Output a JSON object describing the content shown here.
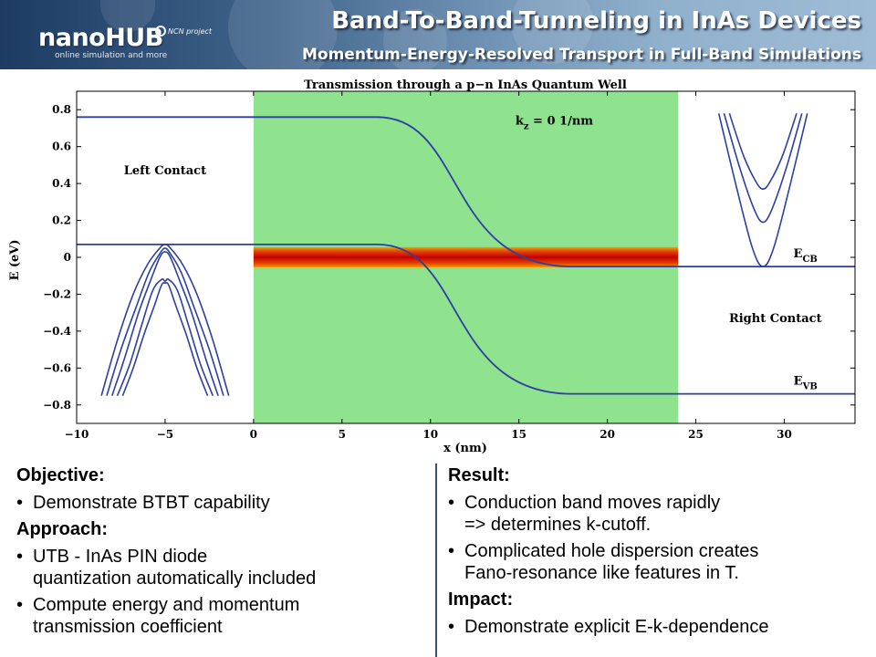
{
  "header": {
    "title": "Band-To-Band-Tunneling in InAs Devices",
    "subtitle": "Momentum-Energy-Resolved Transport in Full-Band Simulations",
    "logo_text": "nanoHUB",
    "logo_tagline": "online simulation and more",
    "partner_text": "NCN project"
  },
  "chart_data": {
    "type": "line",
    "title": "Transmission through a p−n InAs Quantum Well",
    "xlabel": "x (nm)",
    "ylabel": "E (eV)",
    "xlim": [
      -10,
      34
    ],
    "ylim": [
      -0.9,
      0.9
    ],
    "x_ticks": [
      -10,
      -5,
      0,
      5,
      10,
      15,
      20,
      25,
      30
    ],
    "x_tick_labels": [
      "−10",
      "−5",
      "0",
      "5",
      "10",
      "15",
      "20",
      "25",
      "30"
    ],
    "y_ticks": [
      -0.8,
      -0.6,
      -0.4,
      -0.2,
      0,
      0.2,
      0.4,
      0.6,
      0.8
    ],
    "y_tick_labels": [
      "−0.8",
      "−0.6",
      "−0.4",
      "−0.2",
      "0",
      "0.2",
      "0.4",
      "0.6",
      "0.8"
    ],
    "grid": false,
    "device_region": [
      0,
      24
    ],
    "transmission_band": [
      -0.055,
      0.055
    ],
    "series": [
      {
        "name": "E_CB",
        "x": [
          -10,
          7,
          12.5,
          18,
          34
        ],
        "y": [
          0.76,
          0.76,
          0.35,
          -0.05,
          -0.05
        ]
      },
      {
        "name": "E_VB",
        "x": [
          -10,
          7,
          12.5,
          18,
          34
        ],
        "y": [
          0.07,
          0.07,
          -0.33,
          -0.74,
          -0.74
        ]
      }
    ],
    "left_contact_dispersion": [
      {
        "x": [
          -8.6,
          -7.7,
          -6.8,
          -6.0,
          -5.3,
          -5.0,
          -4.7,
          -4.0,
          -3.2,
          -2.3,
          -1.4
        ],
        "y": [
          -0.75,
          -0.45,
          -0.2,
          -0.04,
          0.05,
          0.07,
          0.05,
          -0.04,
          -0.2,
          -0.45,
          -0.75
        ]
      },
      {
        "x": [
          -8.3,
          -7.5,
          -6.6,
          -5.9,
          -5.3,
          -5.0,
          -4.7,
          -4.1,
          -3.4,
          -2.5,
          -1.7
        ],
        "y": [
          -0.75,
          -0.5,
          -0.26,
          -0.08,
          0.02,
          0.05,
          0.02,
          -0.08,
          -0.26,
          -0.5,
          -0.75
        ]
      },
      {
        "x": [
          -8.0,
          -7.3,
          -6.5,
          -5.8,
          -5.3,
          -5.0,
          -4.7,
          -4.2,
          -3.5,
          -2.7,
          -2.0
        ],
        "y": [
          -0.75,
          -0.55,
          -0.3,
          -0.12,
          0.0,
          0.03,
          0.0,
          -0.12,
          -0.3,
          -0.55,
          -0.75
        ]
      },
      {
        "x": [
          -7.7,
          -7.0,
          -6.3,
          -5.7,
          -5.2,
          -5.0,
          -4.8,
          -4.3,
          -3.7,
          -3.0,
          -2.3
        ],
        "y": [
          -0.75,
          -0.58,
          -0.36,
          -0.18,
          -0.12,
          -0.13,
          -0.12,
          -0.18,
          -0.36,
          -0.58,
          -0.75
        ]
      },
      {
        "x": [
          -7.4,
          -6.8,
          -6.2,
          -5.6,
          -5.2,
          -5.0,
          -4.8,
          -4.4,
          -3.8,
          -3.2,
          -2.6
        ],
        "y": [
          -0.75,
          -0.6,
          -0.42,
          -0.26,
          -0.15,
          -0.14,
          -0.15,
          -0.26,
          -0.42,
          -0.6,
          -0.75
        ]
      }
    ],
    "right_contact_dispersion": [
      {
        "x": [
          26.3,
          27.3,
          28.2,
          28.8,
          29.4,
          30.3,
          31.3
        ],
        "y": [
          0.78,
          0.38,
          0.05,
          -0.05,
          0.05,
          0.38,
          0.78
        ]
      },
      {
        "x": [
          26.6,
          27.5,
          28.3,
          28.8,
          29.3,
          30.1,
          31.0
        ],
        "y": [
          0.78,
          0.48,
          0.26,
          0.19,
          0.26,
          0.48,
          0.78
        ]
      },
      {
        "x": [
          26.9,
          27.7,
          28.4,
          28.8,
          29.2,
          29.9,
          30.7
        ],
        "y": [
          0.78,
          0.55,
          0.41,
          0.37,
          0.41,
          0.55,
          0.78
        ]
      }
    ],
    "annotations": [
      {
        "text": "Left Contact",
        "x": -5.0,
        "y": 0.45
      },
      {
        "text": "Right Contact",
        "x": 29.5,
        "y": -0.35
      },
      {
        "text": "k",
        "sub": "z",
        "suffix": " = 0 1/nm",
        "x": 17,
        "y": 0.72
      },
      {
        "text": "E",
        "sub": "CB",
        "x": 31.2,
        "y": 0.0
      },
      {
        "text": "E",
        "sub": "VB",
        "x": 31.2,
        "y": -0.69
      }
    ],
    "colors": {
      "device_fill": "#8fe38f",
      "band_line": "#2d3fa3",
      "transmission_core": "#c40000",
      "transmission_edge": "#f0a000"
    }
  },
  "left_column": {
    "objective_heading": "Objective:",
    "objective_items": [
      {
        "lines": [
          "Demonstrate BTBT capability"
        ]
      }
    ],
    "approach_heading": "Approach:",
    "approach_items": [
      {
        "lines": [
          "UTB - InAs PIN diode",
          "quantization automatically included"
        ]
      },
      {
        "lines": [
          "Compute energy and momentum",
          "transmission coefficient"
        ]
      }
    ]
  },
  "right_column": {
    "result_heading": "Result:",
    "result_items": [
      {
        "lines": [
          "Conduction band moves rapidly",
          "=> determines k-cutoff."
        ]
      },
      {
        "lines": [
          "Complicated hole dispersion creates",
          "Fano-resonance like features in T."
        ]
      }
    ],
    "impact_heading": "Impact:",
    "impact_items": [
      {
        "lines": [
          "Demonstrate explicit E-k-dependence"
        ]
      }
    ]
  }
}
